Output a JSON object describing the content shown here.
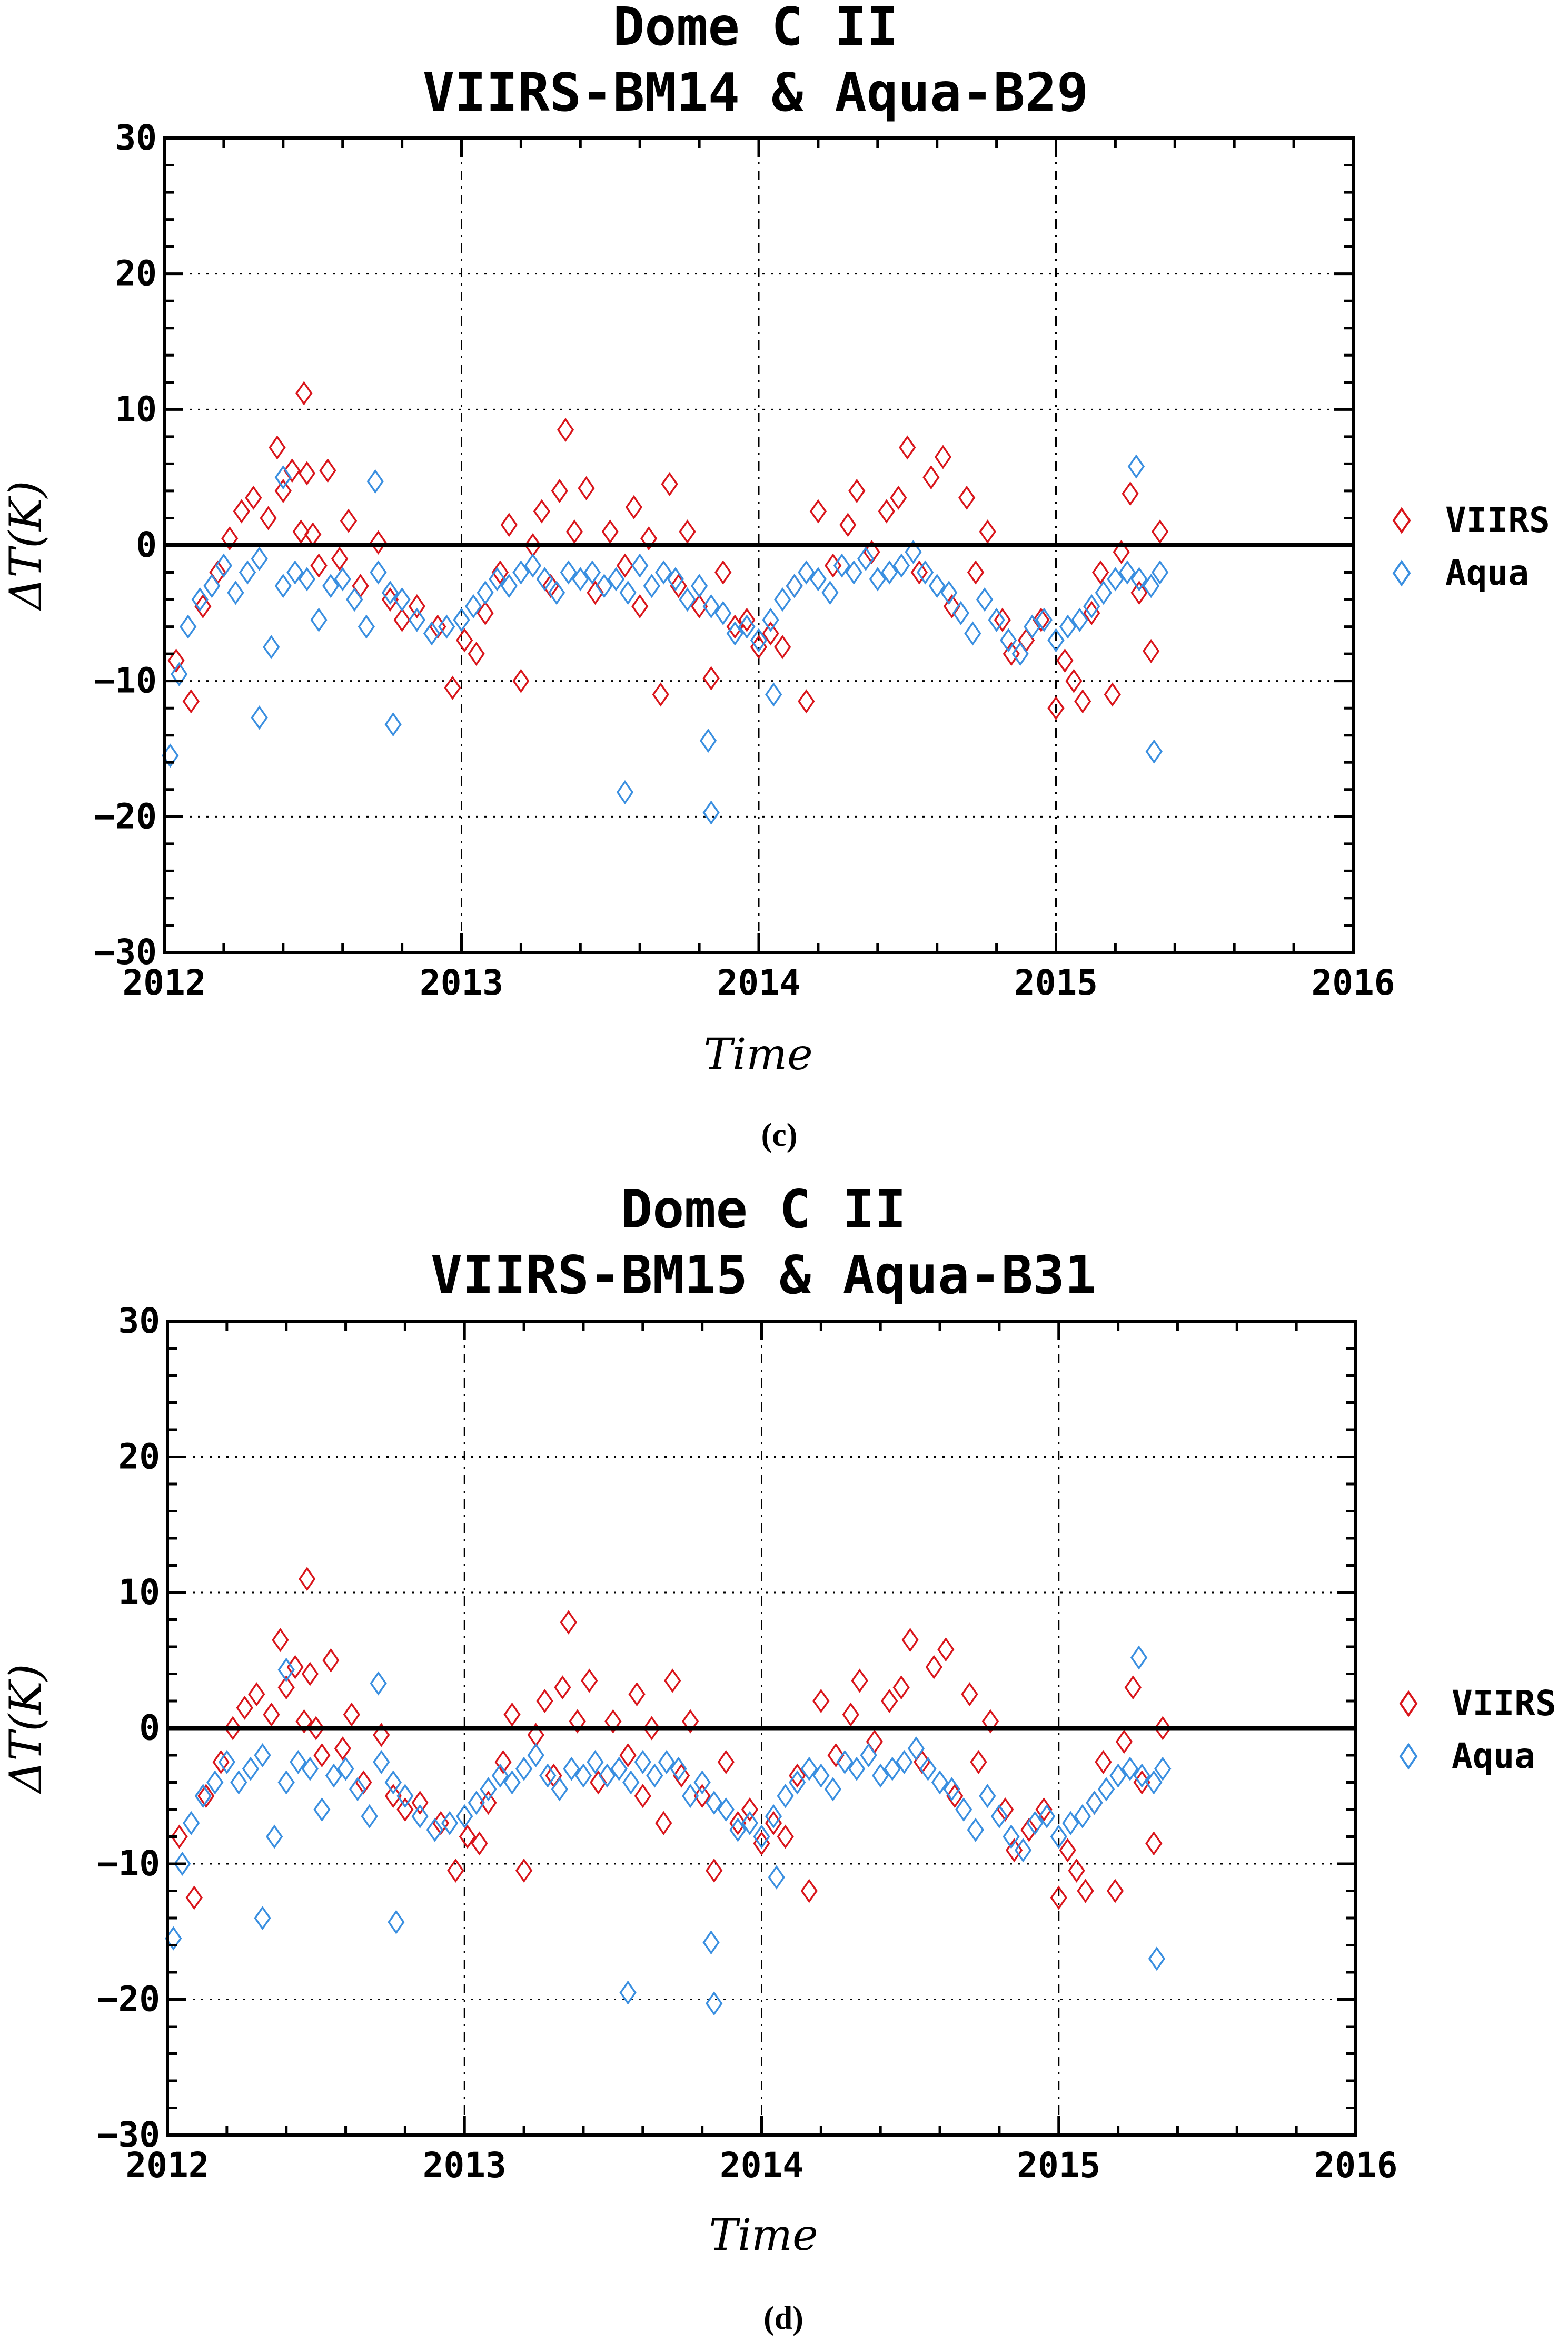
{
  "chart_data": [
    {
      "type": "scatter",
      "panel_label": "(c)",
      "title": "Dome C II",
      "subtitle": "VIIRS-BM14 & Aqua-B29",
      "xlabel": "Time",
      "ylabel": "ΔT(K)",
      "xlim": [
        2012,
        2016
      ],
      "ylim": [
        -30,
        30
      ],
      "xticks": [
        "2012",
        "2013",
        "2014",
        "2015",
        "2016"
      ],
      "yticks": [
        "30",
        "20",
        "10",
        "0",
        "−10",
        "−20",
        "−30"
      ],
      "grid": true,
      "reference_line": 0,
      "legend_position": "right",
      "series": [
        {
          "name": "VIIRS",
          "color": "#d9151b",
          "marker": "diamond",
          "x": [
            2012.04,
            2012.09,
            2012.13,
            2012.18,
            2012.22,
            2012.26,
            2012.3,
            2012.35,
            2012.38,
            2012.4,
            2012.43,
            2012.46,
            2012.47,
            2012.48,
            2012.5,
            2012.52,
            2012.55,
            2012.59,
            2012.62,
            2012.66,
            2012.72,
            2012.76,
            2012.8,
            2012.85,
            2012.92,
            2012.97,
            2013.01,
            2013.05,
            2013.08,
            2013.13,
            2013.16,
            2013.2,
            2013.24,
            2013.27,
            2013.3,
            2013.33,
            2013.35,
            2013.38,
            2013.42,
            2013.45,
            2013.5,
            2013.55,
            2013.58,
            2013.6,
            2013.63,
            2013.67,
            2013.7,
            2013.73,
            2013.76,
            2013.8,
            2013.84,
            2013.88,
            2013.92,
            2013.96,
            2014.0,
            2014.04,
            2014.08,
            2014.12,
            2014.16,
            2014.2,
            2014.25,
            2014.3,
            2014.33,
            2014.38,
            2014.43,
            2014.47,
            2014.5,
            2014.54,
            2014.58,
            2014.62,
            2014.65,
            2014.7,
            2014.73,
            2014.77,
            2014.82,
            2014.85,
            2014.9,
            2014.95,
            2015.0,
            2015.03,
            2015.06,
            2015.09,
            2015.12,
            2015.15,
            2015.19,
            2015.22,
            2015.25,
            2015.28,
            2015.32,
            2015.35
          ],
          "y": [
            -8.5,
            -11.5,
            -4.5,
            -2.0,
            0.5,
            2.5,
            3.5,
            2.0,
            7.2,
            4.0,
            5.5,
            1.0,
            11.2,
            5.3,
            0.8,
            -1.5,
            5.5,
            -1.0,
            1.8,
            -3.0,
            0.2,
            -4.0,
            -5.5,
            -4.5,
            -6.0,
            -10.5,
            -7.0,
            -8.0,
            -5.0,
            -2.0,
            1.5,
            -10.0,
            0.0,
            2.5,
            -3.0,
            4.0,
            8.5,
            1.0,
            4.2,
            -3.5,
            1.0,
            -1.5,
            2.8,
            -4.5,
            0.5,
            -11.0,
            4.5,
            -3.0,
            1.0,
            -4.5,
            -9.8,
            -2.0,
            -6.0,
            -5.5,
            -7.5,
            -6.5,
            -7.5,
            -3.0,
            -11.5,
            2.5,
            -1.5,
            1.5,
            4.0,
            -0.5,
            2.5,
            3.5,
            7.2,
            -2.0,
            5.0,
            6.5,
            -4.5,
            3.5,
            -2.0,
            1.0,
            -5.5,
            -8.0,
            -7.0,
            -5.5,
            -12.0,
            -8.5,
            -10.0,
            -11.5,
            -5.0,
            -2.0,
            -11.0,
            -0.5,
            3.8,
            -3.5,
            -7.8,
            1.0
          ]
        },
        {
          "name": "Aqua",
          "color": "#3a8fe0",
          "marker": "diamond",
          "x": [
            2012.02,
            2012.05,
            2012.08,
            2012.12,
            2012.16,
            2012.2,
            2012.24,
            2012.28,
            2012.32,
            2012.36,
            2012.4,
            2012.44,
            2012.48,
            2012.52,
            2012.56,
            2012.6,
            2012.64,
            2012.68,
            2012.72,
            2012.76,
            2012.8,
            2012.85,
            2012.9,
            2012.95,
            2013.0,
            2013.04,
            2013.08,
            2013.12,
            2013.16,
            2013.2,
            2013.24,
            2013.28,
            2013.32,
            2013.36,
            2013.4,
            2013.44,
            2013.48,
            2013.52,
            2013.56,
            2013.6,
            2013.64,
            2013.68,
            2013.72,
            2013.76,
            2013.8,
            2013.84,
            2013.88,
            2013.92,
            2013.96,
            2014.0,
            2014.04,
            2014.08,
            2014.12,
            2014.16,
            2014.2,
            2014.24,
            2014.28,
            2014.32,
            2014.36,
            2014.4,
            2014.44,
            2014.48,
            2014.52,
            2014.56,
            2014.6,
            2014.64,
            2014.68,
            2014.72,
            2014.76,
            2014.8,
            2014.84,
            2014.88,
            2014.92,
            2014.96,
            2015.0,
            2015.04,
            2015.08,
            2015.12,
            2015.16,
            2015.2,
            2015.24,
            2015.28,
            2015.32,
            2015.35,
            2012.32,
            2012.71,
            2012.77,
            2013.55,
            2013.83,
            2013.84,
            2014.05,
            2015.33,
            2015.27,
            2012.4
          ],
          "y": [
            -15.5,
            -9.5,
            -6.0,
            -4.0,
            -3.0,
            -1.5,
            -3.5,
            -2.0,
            -1.0,
            -7.5,
            -3.0,
            -2.0,
            -2.5,
            -5.5,
            -3.0,
            -2.5,
            -4.0,
            -6.0,
            -2.0,
            -3.5,
            -4.0,
            -5.5,
            -6.5,
            -6.0,
            -5.5,
            -4.5,
            -3.5,
            -2.5,
            -3.0,
            -2.0,
            -1.5,
            -2.5,
            -3.5,
            -2.0,
            -2.5,
            -2.0,
            -3.0,
            -2.5,
            -3.5,
            -1.5,
            -3.0,
            -2.0,
            -2.5,
            -4.0,
            -3.0,
            -4.5,
            -5.0,
            -6.5,
            -6.0,
            -7.0,
            -5.5,
            -4.0,
            -3.0,
            -2.0,
            -2.5,
            -3.5,
            -1.5,
            -2.0,
            -1.0,
            -2.5,
            -2.0,
            -1.5,
            -0.5,
            -2.0,
            -3.0,
            -3.5,
            -5.0,
            -6.5,
            -4.0,
            -5.5,
            -7.0,
            -8.0,
            -6.0,
            -5.5,
            -7.0,
            -6.0,
            -5.5,
            -4.5,
            -3.5,
            -2.5,
            -2.0,
            -2.5,
            -3.0,
            -2.0,
            -12.7,
            4.7,
            -13.2,
            -18.2,
            -14.4,
            -19.7,
            -11.0,
            -15.2,
            5.8,
            5.0
          ]
        }
      ]
    },
    {
      "type": "scatter",
      "panel_label": "(d)",
      "title": "Dome C II",
      "subtitle": "VIIRS-BM15 & Aqua-B31",
      "xlabel": "Time",
      "ylabel": "ΔT(K)",
      "xlim": [
        2012,
        2016
      ],
      "ylim": [
        -30,
        30
      ],
      "xticks": [
        "2012",
        "2013",
        "2014",
        "2015",
        "2016"
      ],
      "yticks": [
        "30",
        "20",
        "10",
        "0",
        "−10",
        "−20",
        "−30"
      ],
      "grid": true,
      "reference_line": 0,
      "legend_position": "right",
      "series": [
        {
          "name": "VIIRS",
          "color": "#d9151b",
          "marker": "diamond",
          "x": [
            2012.04,
            2012.09,
            2012.13,
            2012.18,
            2012.22,
            2012.26,
            2012.3,
            2012.35,
            2012.38,
            2012.4,
            2012.43,
            2012.46,
            2012.47,
            2012.48,
            2012.5,
            2012.52,
            2012.55,
            2012.59,
            2012.62,
            2012.66,
            2012.72,
            2012.76,
            2012.8,
            2012.85,
            2012.92,
            2012.97,
            2013.01,
            2013.05,
            2013.08,
            2013.13,
            2013.16,
            2013.2,
            2013.24,
            2013.27,
            2013.3,
            2013.33,
            2013.35,
            2013.38,
            2013.42,
            2013.45,
            2013.5,
            2013.55,
            2013.58,
            2013.6,
            2013.63,
            2013.67,
            2013.7,
            2013.73,
            2013.76,
            2013.8,
            2013.84,
            2013.88,
            2013.92,
            2013.96,
            2014.0,
            2014.04,
            2014.08,
            2014.12,
            2014.16,
            2014.2,
            2014.25,
            2014.3,
            2014.33,
            2014.38,
            2014.43,
            2014.47,
            2014.5,
            2014.54,
            2014.58,
            2014.62,
            2014.65,
            2014.7,
            2014.73,
            2014.77,
            2014.82,
            2014.85,
            2014.9,
            2014.95,
            2015.0,
            2015.03,
            2015.06,
            2015.09,
            2015.12,
            2015.15,
            2015.19,
            2015.22,
            2015.25,
            2015.28,
            2015.32,
            2015.35
          ],
          "y": [
            -8.0,
            -12.5,
            -5.0,
            -2.5,
            0.0,
            1.5,
            2.5,
            1.0,
            6.5,
            3.0,
            4.5,
            0.5,
            11.0,
            4.0,
            0.0,
            -2.0,
            5.0,
            -1.5,
            1.0,
            -4.0,
            -0.5,
            -5.0,
            -6.0,
            -5.5,
            -7.0,
            -10.5,
            -8.0,
            -8.5,
            -5.5,
            -2.5,
            1.0,
            -10.5,
            -0.5,
            2.0,
            -3.5,
            3.0,
            7.8,
            0.5,
            3.5,
            -4.0,
            0.5,
            -2.0,
            2.5,
            -5.0,
            0.0,
            -7.0,
            3.5,
            -3.5,
            0.5,
            -5.0,
            -10.5,
            -2.5,
            -7.0,
            -6.0,
            -8.5,
            -7.0,
            -8.0,
            -3.5,
            -12.0,
            2.0,
            -2.0,
            1.0,
            3.5,
            -1.0,
            2.0,
            3.0,
            6.5,
            -2.5,
            4.5,
            5.8,
            -5.0,
            2.5,
            -2.5,
            0.5,
            -6.0,
            -9.0,
            -7.5,
            -6.0,
            -12.5,
            -9.0,
            -10.5,
            -12.0,
            -5.5,
            -2.5,
            -12.0,
            -1.0,
            3.0,
            -4.0,
            -8.5,
            0.0
          ]
        },
        {
          "name": "Aqua",
          "color": "#3a8fe0",
          "marker": "diamond",
          "x": [
            2012.02,
            2012.05,
            2012.08,
            2012.12,
            2012.16,
            2012.2,
            2012.24,
            2012.28,
            2012.32,
            2012.36,
            2012.4,
            2012.44,
            2012.48,
            2012.52,
            2012.56,
            2012.6,
            2012.64,
            2012.68,
            2012.72,
            2012.76,
            2012.8,
            2012.85,
            2012.9,
            2012.95,
            2013.0,
            2013.04,
            2013.08,
            2013.12,
            2013.16,
            2013.2,
            2013.24,
            2013.28,
            2013.32,
            2013.36,
            2013.4,
            2013.44,
            2013.48,
            2013.52,
            2013.56,
            2013.6,
            2013.64,
            2013.68,
            2013.72,
            2013.76,
            2013.8,
            2013.84,
            2013.88,
            2013.92,
            2013.96,
            2014.0,
            2014.04,
            2014.08,
            2014.12,
            2014.16,
            2014.2,
            2014.24,
            2014.28,
            2014.32,
            2014.36,
            2014.4,
            2014.44,
            2014.48,
            2014.52,
            2014.56,
            2014.6,
            2014.64,
            2014.68,
            2014.72,
            2014.76,
            2014.8,
            2014.84,
            2014.88,
            2014.92,
            2014.96,
            2015.0,
            2015.04,
            2015.08,
            2015.12,
            2015.16,
            2015.2,
            2015.24,
            2015.28,
            2015.32,
            2015.35,
            2012.32,
            2012.71,
            2012.77,
            2013.55,
            2013.83,
            2013.84,
            2014.05,
            2015.33,
            2015.27,
            2012.4
          ],
          "y": [
            -15.5,
            -10.0,
            -7.0,
            -5.0,
            -4.0,
            -2.5,
            -4.0,
            -3.0,
            -2.0,
            -8.0,
            -4.0,
            -2.5,
            -3.0,
            -6.0,
            -3.5,
            -3.0,
            -4.5,
            -6.5,
            -2.5,
            -4.0,
            -5.0,
            -6.5,
            -7.5,
            -7.0,
            -6.5,
            -5.5,
            -4.5,
            -3.5,
            -4.0,
            -3.0,
            -2.0,
            -3.5,
            -4.5,
            -3.0,
            -3.5,
            -2.5,
            -3.5,
            -3.0,
            -4.0,
            -2.5,
            -3.5,
            -2.5,
            -3.0,
            -5.0,
            -4.0,
            -5.5,
            -6.0,
            -7.5,
            -7.0,
            -8.0,
            -6.5,
            -5.0,
            -4.0,
            -3.0,
            -3.5,
            -4.5,
            -2.5,
            -3.0,
            -2.0,
            -3.5,
            -3.0,
            -2.5,
            -1.5,
            -3.0,
            -4.0,
            -4.5,
            -6.0,
            -7.5,
            -5.0,
            -6.5,
            -8.0,
            -9.0,
            -7.0,
            -6.5,
            -8.0,
            -7.0,
            -6.5,
            -5.5,
            -4.5,
            -3.5,
            -3.0,
            -3.5,
            -4.0,
            -3.0,
            -14.0,
            3.3,
            -14.3,
            -19.5,
            -15.8,
            -20.3,
            -11.0,
            -17.0,
            5.2,
            4.3
          ]
        }
      ]
    }
  ],
  "panels": [
    {
      "title": "Dome C II",
      "subtitle": "VIIRS-BM14 & Aqua-B29",
      "xlabel": "Time",
      "ylabel_main": "ΔT",
      "ylabel_unit": "(K)",
      "caption": "(c)",
      "legend": [
        "VIIRS",
        "Aqua"
      ]
    },
    {
      "title": "Dome C II",
      "subtitle": "VIIRS-BM15 & Aqua-B31",
      "xlabel": "Time",
      "ylabel_main": "ΔT",
      "ylabel_unit": "(K)",
      "caption": "(d)",
      "legend": [
        "VIIRS",
        "Aqua"
      ]
    }
  ]
}
